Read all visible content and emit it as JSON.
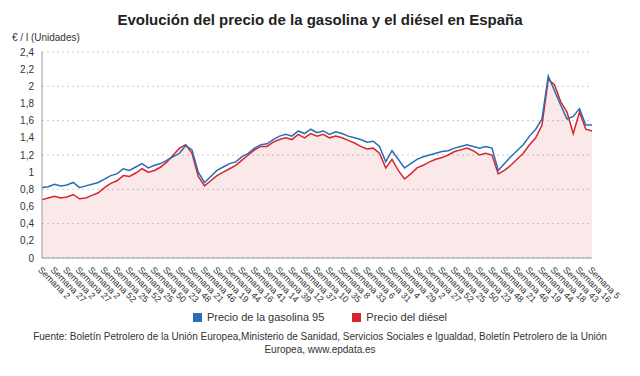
{
  "chart_data": {
    "type": "line",
    "title": "Evolución del precio de la gasolina y el diésel en España",
    "y_label": "€ / l (Unidades)",
    "source": "Fuente: Boletín Petrolero de la Unión Europea,Ministerio de Sanidad, Servicios Sociales e Igualdad, Boletín Petrolero de la Unión Europea, www.epdata.es",
    "categories": [
      "Semana 2",
      null,
      "Semana 27",
      null,
      "Semana 2",
      null,
      "Semana 27",
      null,
      "Semana 2",
      null,
      "Semana 52",
      null,
      "Semana 25",
      null,
      "Semana 52",
      null,
      "Semana 25",
      null,
      "Semana 50",
      null,
      "Semana 23",
      null,
      "Semana 48",
      null,
      "Semana 21",
      null,
      "Semana 46",
      null,
      "Semana 19",
      null,
      "Semana 44",
      null,
      "Semana 16",
      null,
      "Semana 41",
      null,
      "Semana 14",
      null,
      "Semana 39",
      null,
      "Semana 12",
      null,
      "Semana 37",
      null,
      "Semana 10",
      null,
      "Semana 35",
      null,
      "Semana 8",
      null,
      "Semana 33",
      null,
      "Semana 6",
      null,
      "Semana 31",
      null,
      "Semana 4",
      null,
      "Semana 29",
      null,
      "Semana 2",
      null,
      "Semana 27",
      null,
      "Semana 52",
      null,
      "Semana 25",
      null,
      "Semana 50",
      null,
      "Semana 23",
      null,
      "Semana 48",
      null,
      "Semana 21",
      null,
      "Semana 46",
      null,
      "Semana 19",
      null,
      "Semana 44",
      null,
      "Semana 18",
      null,
      "Semana 43",
      null,
      "Semana 16",
      null,
      "Semana 5"
    ],
    "series": [
      {
        "name": "Precio de la gasolina 95",
        "color": "#2a6db5",
        "type": "line",
        "values": [
          0.82,
          0.83,
          0.86,
          0.84,
          0.85,
          0.88,
          0.82,
          0.84,
          0.86,
          0.88,
          0.92,
          0.96,
          0.98,
          1.04,
          1.02,
          1.06,
          1.1,
          1.05,
          1.08,
          1.1,
          1.14,
          1.18,
          1.22,
          1.31,
          1.26,
          1.0,
          0.88,
          0.95,
          1.02,
          1.06,
          1.1,
          1.12,
          1.18,
          1.22,
          1.28,
          1.32,
          1.33,
          1.38,
          1.42,
          1.44,
          1.42,
          1.48,
          1.45,
          1.5,
          1.46,
          1.48,
          1.44,
          1.47,
          1.45,
          1.42,
          1.4,
          1.38,
          1.35,
          1.36,
          1.3,
          1.12,
          1.25,
          1.15,
          1.05,
          1.1,
          1.15,
          1.18,
          1.2,
          1.22,
          1.24,
          1.25,
          1.28,
          1.3,
          1.32,
          1.3,
          1.28,
          1.3,
          1.28,
          1.02,
          1.1,
          1.18,
          1.25,
          1.32,
          1.42,
          1.5,
          1.62,
          2.12,
          1.95,
          1.78,
          1.62,
          1.65,
          1.74,
          1.55,
          1.55
        ]
      },
      {
        "name": "Precio del diésel",
        "color": "#d7262b",
        "type": "area",
        "values": [
          0.68,
          0.7,
          0.72,
          0.7,
          0.71,
          0.74,
          0.69,
          0.7,
          0.73,
          0.76,
          0.82,
          0.87,
          0.9,
          0.96,
          0.95,
          0.99,
          1.04,
          1.0,
          1.02,
          1.06,
          1.12,
          1.2,
          1.28,
          1.32,
          1.22,
          0.95,
          0.84,
          0.9,
          0.96,
          1.0,
          1.04,
          1.08,
          1.14,
          1.2,
          1.26,
          1.3,
          1.3,
          1.35,
          1.38,
          1.4,
          1.38,
          1.44,
          1.4,
          1.45,
          1.42,
          1.44,
          1.4,
          1.42,
          1.4,
          1.37,
          1.34,
          1.3,
          1.27,
          1.28,
          1.22,
          1.05,
          1.15,
          1.02,
          0.92,
          0.98,
          1.05,
          1.08,
          1.12,
          1.15,
          1.17,
          1.2,
          1.24,
          1.26,
          1.28,
          1.25,
          1.2,
          1.22,
          1.2,
          0.98,
          1.02,
          1.08,
          1.15,
          1.22,
          1.32,
          1.4,
          1.55,
          2.08,
          2.02,
          1.82,
          1.7,
          1.45,
          1.7,
          1.5,
          1.48
        ]
      }
    ],
    "ylim": [
      0,
      2.4
    ],
    "yticks": [
      0,
      {
        "value": 0.2,
        "label": "0,2"
      },
      {
        "value": 0.4,
        "label": "0,4"
      },
      {
        "value": 0.6,
        "label": "0,6"
      },
      {
        "value": 0.8,
        "label": "0,8"
      },
      1,
      {
        "value": 1.2,
        "label": "1,2"
      },
      {
        "value": 1.4,
        "label": "1,4"
      },
      {
        "value": 1.6,
        "label": "1,6"
      },
      {
        "value": 1.8,
        "label": "1,8"
      },
      2,
      {
        "value": 2.2,
        "label": "2,2"
      },
      {
        "value": 2.4,
        "label": "2,4"
      }
    ],
    "grid": true,
    "legend": "bottom"
  }
}
